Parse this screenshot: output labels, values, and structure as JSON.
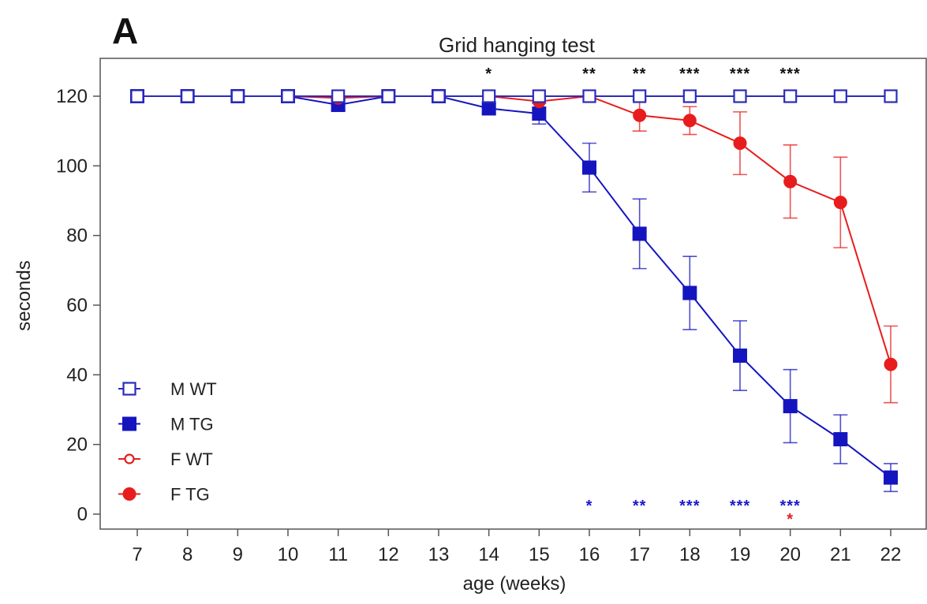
{
  "panel_label": "A",
  "chart_data": {
    "type": "line",
    "title": "Grid hanging test",
    "xlabel": "age (weeks)",
    "ylabel": "seconds",
    "x": [
      7,
      8,
      9,
      10,
      11,
      12,
      13,
      14,
      15,
      16,
      17,
      18,
      19,
      20,
      21,
      22
    ],
    "xlim": [
      7,
      22
    ],
    "ylim": [
      0,
      120
    ],
    "yticks": [
      0,
      20,
      40,
      60,
      80,
      100,
      120
    ],
    "grid": false,
    "legend_position": "bottom-left",
    "series": [
      {
        "name": "M WT",
        "color": "#2b2bbb",
        "marker": "square-open",
        "values": [
          120,
          120,
          120,
          120,
          120,
          120,
          120,
          120,
          120,
          120,
          120,
          120,
          120,
          120,
          120,
          120
        ],
        "errors": [
          0,
          0,
          0,
          0,
          0,
          0,
          0,
          0,
          0,
          0,
          0,
          0,
          0,
          0,
          0,
          0
        ]
      },
      {
        "name": "M TG",
        "color": "#1515c0",
        "marker": "square-filled",
        "values": [
          120,
          120,
          120,
          120,
          117.5,
          120,
          120,
          116.5,
          115,
          99.5,
          80.5,
          63.5,
          45.5,
          31,
          21.5,
          10.5
        ],
        "errors": [
          0,
          0,
          0,
          0,
          1.5,
          0,
          0,
          1.5,
          3,
          7,
          10,
          10.5,
          10,
          10.5,
          7,
          4
        ]
      },
      {
        "name": "F WT",
        "color": "#e02020",
        "marker": "circle-open",
        "values": [
          120,
          120,
          120,
          120,
          120,
          120,
          120,
          120,
          120,
          120,
          120,
          120,
          120,
          120,
          120,
          120
        ],
        "errors": [
          0,
          0,
          0,
          0,
          0,
          0,
          0,
          0,
          0,
          0,
          0,
          0,
          0,
          0,
          0,
          0
        ]
      },
      {
        "name": "F TG",
        "color": "#e81c1c",
        "marker": "circle-filled",
        "values": [
          120,
          120,
          120,
          120,
          119.5,
          120,
          120,
          120,
          118.5,
          120,
          114.5,
          113,
          106.5,
          95.5,
          89.5,
          43
        ],
        "errors": [
          0,
          0,
          0,
          0,
          0,
          0,
          0,
          0,
          0,
          0,
          4.5,
          4,
          9,
          10.5,
          13,
          11
        ]
      }
    ],
    "annotations_top": [
      {
        "x": 14,
        "text": "*",
        "color": "#111111"
      },
      {
        "x": 16,
        "text": "**",
        "color": "#111111"
      },
      {
        "x": 17,
        "text": "**",
        "color": "#111111"
      },
      {
        "x": 18,
        "text": "***",
        "color": "#111111"
      },
      {
        "x": 19,
        "text": "***",
        "color": "#111111"
      },
      {
        "x": 20,
        "text": "***",
        "color": "#111111"
      }
    ],
    "annotations_bottom": [
      {
        "x": 16,
        "text": "*",
        "color": "#1a1ad0"
      },
      {
        "x": 17,
        "text": "**",
        "color": "#1a1ad0"
      },
      {
        "x": 18,
        "text": "***",
        "color": "#1a1ad0"
      },
      {
        "x": 19,
        "text": "***",
        "color": "#1a1ad0"
      },
      {
        "x": 20,
        "text": "***",
        "color": "#1a1ad0"
      },
      {
        "x": 20,
        "text": "*",
        "color": "#e02020"
      }
    ]
  }
}
